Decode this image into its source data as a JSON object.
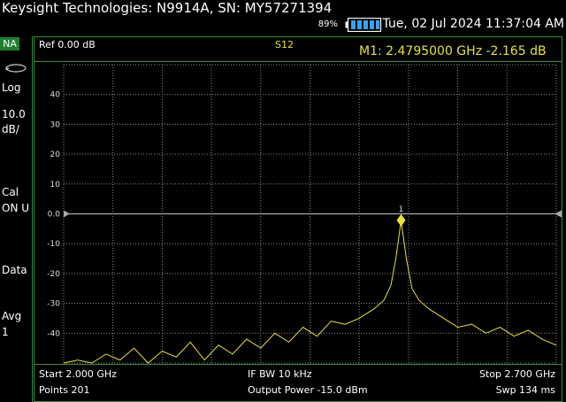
{
  "header": {
    "title": "Keysight Technologies: N9914A, SN: MY57271394",
    "battery_percent": "89%",
    "datetime": "Tue, 02 Jul 2024 11:37:04 AM"
  },
  "left_panel": {
    "mode": "NA",
    "scale_type": "Log",
    "scale_value": "10.0",
    "scale_unit": "dB/",
    "cal_label": "Cal",
    "cal_state": "ON U",
    "data_label": "Data",
    "avg_label": "Avg",
    "avg_value": "1"
  },
  "plot_header": {
    "ref_level": "Ref 0.00 dB",
    "trace_param": "S12",
    "marker_readout": "M1:  2.4795000 GHz -2.165 dB"
  },
  "footer": {
    "start": "Start 2.000 GHz",
    "points": "Points 201",
    "if_bw": "IF BW 10 kHz",
    "output_power": "Output Power -15.0 dBm",
    "stop": "Stop 2.700 GHz",
    "sweep": "Swp 134 ms"
  },
  "colors": {
    "trace": "#e8e23a",
    "grid": "#8a8a8a",
    "frame": "#3a8c3a",
    "mode_badge": "#1f7f2f"
  },
  "chart_data": {
    "type": "line",
    "x_start_ghz": 2.0,
    "x_stop_ghz": 2.7,
    "ylim": [
      -50,
      50
    ],
    "y_tick_labels": [
      "40",
      "30",
      "20",
      "10",
      "0.0",
      "-10",
      "-20",
      "-30",
      "-40"
    ],
    "reference_level": 0.0,
    "marker": {
      "label": "1",
      "x_ghz": 2.4795,
      "y_db": -2.165
    },
    "series": [
      {
        "x_ghz": [
          2.0,
          2.02,
          2.04,
          2.06,
          2.08,
          2.1,
          2.12,
          2.14,
          2.16,
          2.18,
          2.2,
          2.22,
          2.24,
          2.26,
          2.28,
          2.3,
          2.32,
          2.34,
          2.36,
          2.38,
          2.4,
          2.42,
          2.44,
          2.455,
          2.465,
          2.472,
          2.4795,
          2.487,
          2.495,
          2.505,
          2.52,
          2.54,
          2.56,
          2.58,
          2.6,
          2.62,
          2.64,
          2.66,
          2.68,
          2.7
        ],
        "values": [
          -50,
          -49,
          -50,
          -47,
          -49,
          -45,
          -50,
          -46,
          -48,
          -43,
          -49,
          -44,
          -47,
          -42,
          -45,
          -40,
          -43,
          -38,
          -41,
          -36,
          -37,
          -35,
          -32,
          -29,
          -24,
          -15,
          -2.2,
          -15,
          -25,
          -29,
          -32,
          -35,
          -38,
          -37,
          -40,
          -38,
          -41,
          -39,
          -42,
          -44
        ]
      }
    ]
  }
}
